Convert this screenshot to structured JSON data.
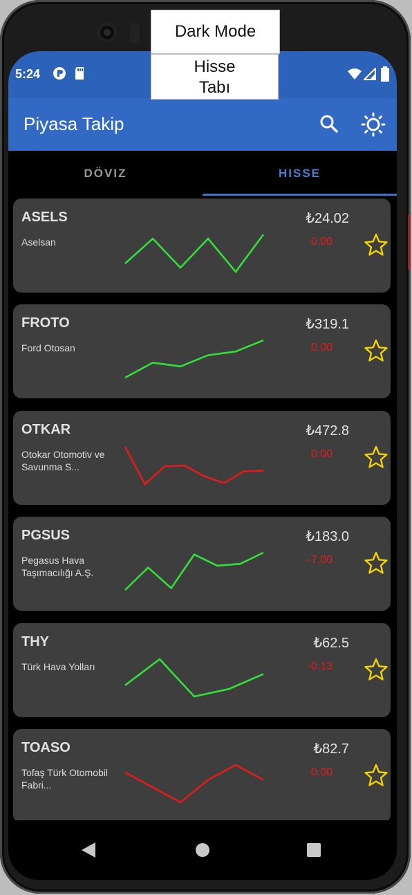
{
  "status_bar": {
    "time": "5:24"
  },
  "app_bar": {
    "title": "Piyasa Takip",
    "search_icon": "search-icon",
    "theme_icon": "sun-icon"
  },
  "tabs": [
    {
      "label": "DÖVIZ",
      "selected": false
    },
    {
      "label": "HISSE",
      "selected": true
    }
  ],
  "tooltips": {
    "dark_mode": "Dark Mode",
    "hisse_tab_line1": "Hisse",
    "hisse_tab_line2": "Tabı"
  },
  "colors": {
    "accent": "#3169c4",
    "positive": "#33e03a",
    "negative": "#e21b1b",
    "star": "#f5d400"
  },
  "stocks": [
    {
      "symbol": "ASELS",
      "name": "Aselsan",
      "price": "₺24.02",
      "change": "0.00",
      "trend": "up",
      "sparkline": [
        2,
        8,
        1,
        8,
        0,
        9
      ]
    },
    {
      "symbol": "FROTO",
      "name": "Ford Otosan",
      "price": "₺319.1",
      "change": "0.00",
      "trend": "up",
      "sparkline": [
        0,
        4,
        3,
        6,
        7,
        10
      ]
    },
    {
      "symbol": "OTKAR",
      "name": "Otokar Otomotiv ve Savunma S...",
      "price": "₺472.8",
      "change": "0.00",
      "trend": "down",
      "sparkline": [
        10,
        3,
        6.3,
        6.5,
        4.5,
        3.2,
        5.4,
        5.5
      ]
    },
    {
      "symbol": "PGSUS",
      "name": "Pegasus Hava Taşımacılığı A.Ş.",
      "price": "₺183.0",
      "change": "-7.00",
      "trend": "up",
      "sparkline": [
        0,
        6,
        0.5,
        9.5,
        6.5,
        7,
        10
      ]
    },
    {
      "symbol": "THY",
      "name": "Türk Hava Yolları",
      "price": "₺62.5",
      "change": "-0.13",
      "trend": "up",
      "sparkline": [
        3,
        10,
        0,
        2,
        6
      ]
    },
    {
      "symbol": "TOASO",
      "name": "Tofaş Türk Otomobil Fabri...",
      "price": "₺82.7",
      "change": "0.00",
      "trend": "down",
      "sparkline": [
        8,
        4,
        0,
        6,
        10,
        6
      ]
    }
  ]
}
